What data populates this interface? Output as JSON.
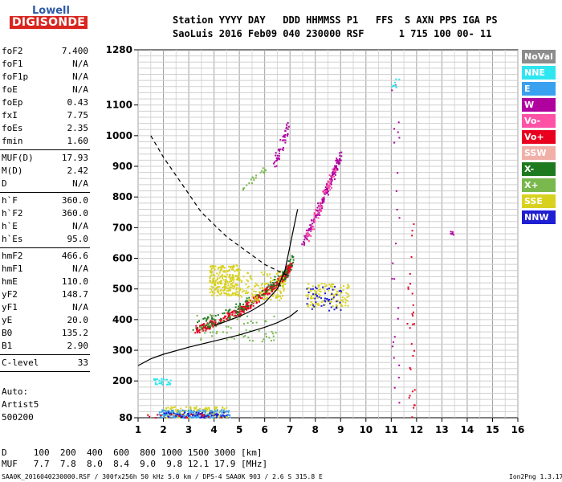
{
  "logo": {
    "top": "Lowell",
    "bottom": "DIGISONDE"
  },
  "header": {
    "line1": "Station YYYY DAY   DDD HHMMSS P1   FFS  S AXN PPS IGA PS",
    "line2": "SaoLuis 2016 Feb09 040 230000 RSF      1 715 100 00- 11"
  },
  "params": [
    {
      "k": "foF2",
      "v": "7.400"
    },
    {
      "k": "foF1",
      "v": "N/A"
    },
    {
      "k": "foF1p",
      "v": "N/A"
    },
    {
      "k": "foE",
      "v": "N/A"
    },
    {
      "k": "foEp",
      "v": "0.43"
    },
    {
      "k": "fxI",
      "v": "7.75"
    },
    {
      "k": "foEs",
      "v": "2.35"
    },
    {
      "k": "fmin",
      "v": "1.60"
    },
    {
      "k": "MUF(D)",
      "v": "17.93"
    },
    {
      "k": "M(D)",
      "v": "2.42"
    },
    {
      "k": "D",
      "v": "N/A"
    },
    {
      "k": "h`F",
      "v": "360.0"
    },
    {
      "k": "h`F2",
      "v": "360.0"
    },
    {
      "k": "h`E",
      "v": "N/A"
    },
    {
      "k": "h`Es",
      "v": "95.0"
    },
    {
      "k": "hmF2",
      "v": "466.6"
    },
    {
      "k": "hmF1",
      "v": "N/A"
    },
    {
      "k": "hmE",
      "v": "110.0"
    },
    {
      "k": "yF2",
      "v": "148.7"
    },
    {
      "k": "yF1",
      "v": "N/A"
    },
    {
      "k": "yE",
      "v": "20.0"
    },
    {
      "k": "B0",
      "v": "135.2"
    },
    {
      "k": "B1",
      "v": "2.90"
    },
    {
      "k": "C-level",
      "v": "33"
    }
  ],
  "auto": {
    "line1": "Auto:",
    "line2": "Artist5",
    "line3": "500200"
  },
  "legend": [
    {
      "label": "NoVal",
      "color": "#8c8c8c"
    },
    {
      "label": "NNE",
      "color": "#2ee6f0"
    },
    {
      "label": "E",
      "color": "#3aa0f0"
    },
    {
      "label": "W",
      "color": "#b0009e"
    },
    {
      "label": "Vo-",
      "color": "#ff52a6"
    },
    {
      "label": "Vo+",
      "color": "#e8001e"
    },
    {
      "label": "SSW",
      "color": "#f0b0a8"
    },
    {
      "label": "X-",
      "color": "#1e7a1e"
    },
    {
      "label": "X+",
      "color": "#78b84c"
    },
    {
      "label": "SSE",
      "color": "#d8d21e"
    },
    {
      "label": "NNW",
      "color": "#1e1ed2"
    }
  ],
  "footer": {
    "d_line": "D     100  200  400  600  800 1000 1500 3000 [km]",
    "muf_line": "MUF   7.7  7.8  8.0  8.4  9.0  9.8 12.1 17.9 [MHz]",
    "source": "SAA0K_2016040230000.RSF / 300fx256h 50 kHz 5.0 km / DPS-4 SAA0K 903 / 2.6 S 315.8 E",
    "version": "Ion2Png 1.3.17"
  },
  "chart_data": {
    "type": "scatter",
    "title": "",
    "xlabel": "",
    "ylabel": "",
    "xlim": [
      1,
      16
    ],
    "ylim": [
      80,
      1280
    ],
    "x_ticks": [
      "1",
      "2",
      "3",
      "4",
      "5",
      "6",
      "7",
      "8",
      "9",
      "10",
      "11",
      "12",
      "13",
      "14",
      "15",
      "16"
    ],
    "y_ticks": [
      {
        "value": 80,
        "label": "80"
      },
      {
        "value": 200,
        "label": "200"
      },
      {
        "value": 300,
        "label": "300"
      },
      {
        "value": 400,
        "label": "400"
      },
      {
        "value": 500,
        "label": "500"
      },
      {
        "value": 600,
        "label": "600"
      },
      {
        "value": 700,
        "label": "700"
      },
      {
        "value": 800,
        "label": "800"
      },
      {
        "value": 900,
        "label": "900"
      },
      {
        "value": 1000,
        "label": "1000"
      },
      {
        "value": 1100,
        "label": "1100"
      },
      {
        "value": 1280,
        "label": "1280"
      }
    ],
    "grid": true,
    "legend_position": "right",
    "curves": [
      {
        "style": "solid",
        "color": "#000000",
        "points": [
          [
            1,
            250
          ],
          [
            1.5,
            272
          ],
          [
            2,
            287
          ],
          [
            3,
            310
          ],
          [
            4,
            330
          ],
          [
            5,
            350
          ],
          [
            6,
            375
          ],
          [
            6.5,
            390
          ],
          [
            7,
            410
          ],
          [
            7.3,
            430
          ]
        ]
      },
      {
        "style": "solid",
        "color": "#000000",
        "points": [
          [
            4,
            380
          ],
          [
            5,
            410
          ],
          [
            5.5,
            430
          ],
          [
            6,
            455
          ],
          [
            6.5,
            500
          ],
          [
            6.8,
            560
          ],
          [
            7.0,
            640
          ],
          [
            7.2,
            720
          ],
          [
            7.3,
            760
          ]
        ]
      },
      {
        "style": "dashed",
        "color": "#000000",
        "points": [
          [
            1.5,
            1000
          ],
          [
            2,
            930
          ],
          [
            2.5,
            870
          ],
          [
            3,
            810
          ],
          [
            3.5,
            750
          ],
          [
            4,
            710
          ],
          [
            4.5,
            670
          ],
          [
            5,
            640
          ],
          [
            5.5,
            610
          ],
          [
            6,
            580
          ],
          [
            6.5,
            560
          ],
          [
            7,
            540
          ]
        ]
      }
    ],
    "clusters": [
      {
        "color": "#e8001e",
        "n": 420,
        "shape": "curve",
        "pts": [
          [
            3.3,
            370
          ],
          [
            4,
            390
          ],
          [
            5,
            430
          ],
          [
            5.5,
            460
          ],
          [
            6,
            490
          ],
          [
            6.5,
            520
          ],
          [
            6.8,
            550
          ],
          [
            7,
            580
          ]
        ],
        "spread": 12
      },
      {
        "color": "#1e7a1e",
        "n": 150,
        "shape": "curve",
        "pts": [
          [
            3.2,
            380
          ],
          [
            4,
            400
          ],
          [
            5,
            440
          ],
          [
            6,
            500
          ],
          [
            6.7,
            540
          ],
          [
            7.1,
            600
          ]
        ],
        "spread": 18
      },
      {
        "color": "#b0009e",
        "n": 160,
        "shape": "curve",
        "pts": [
          [
            7.5,
            650
          ],
          [
            8,
            740
          ],
          [
            8.3,
            800
          ],
          [
            8.7,
            880
          ],
          [
            9,
            950
          ]
        ],
        "spread": 14
      },
      {
        "color": "#ff52a6",
        "n": 60,
        "shape": "curve",
        "pts": [
          [
            7.6,
            660
          ],
          [
            8.2,
            780
          ],
          [
            8.8,
            900
          ]
        ],
        "spread": 16
      },
      {
        "color": "#b0009e",
        "n": 45,
        "shape": "curve",
        "pts": [
          [
            6.3,
            900
          ],
          [
            6.6,
            960
          ],
          [
            6.9,
            1030
          ]
        ],
        "spread": 18
      },
      {
        "color": "#78b84c",
        "n": 20,
        "shape": "curve",
        "pts": [
          [
            5,
            820
          ],
          [
            5.5,
            860
          ],
          [
            6,
            900
          ]
        ],
        "spread": 10
      },
      {
        "color": "#d8d21e",
        "n": 260,
        "shape": "box",
        "box": [
          3.8,
          5.0,
          480,
          580
        ]
      },
      {
        "color": "#d8d21e",
        "n": 120,
        "shape": "box",
        "box": [
          5.0,
          6.8,
          460,
          560
        ]
      },
      {
        "color": "#d8d21e",
        "n": 120,
        "shape": "box",
        "box": [
          7.6,
          9.3,
          440,
          520
        ]
      },
      {
        "color": "#1e1ed2",
        "n": 50,
        "shape": "box",
        "box": [
          7.6,
          9.0,
          430,
          510
        ]
      },
      {
        "color": "#78b84c",
        "n": 60,
        "shape": "box",
        "box": [
          3.3,
          6.5,
          330,
          420
        ]
      },
      {
        "color": "#d8d21e",
        "n": 160,
        "shape": "box",
        "box": [
          2.0,
          4.5,
          82,
          118
        ]
      },
      {
        "color": "#3aa0f0",
        "n": 180,
        "shape": "box",
        "box": [
          1.8,
          4.6,
          82,
          108
        ]
      },
      {
        "color": "#1e1ed2",
        "n": 60,
        "shape": "box",
        "box": [
          2.0,
          4.5,
          82,
          100
        ]
      },
      {
        "color": "#e8001e",
        "n": 20,
        "shape": "box",
        "box": [
          1.2,
          4.5,
          82,
          95
        ]
      },
      {
        "color": "#2ee6f0",
        "n": 30,
        "shape": "box",
        "box": [
          1.6,
          2.3,
          190,
          210
        ]
      },
      {
        "color": "#e8001e",
        "n": 30,
        "shape": "box",
        "box": [
          11.6,
          11.9,
          80,
          760
        ]
      },
      {
        "color": "#b0009e",
        "n": 25,
        "shape": "box",
        "box": [
          11.0,
          11.3,
          100,
          1180
        ]
      },
      {
        "color": "#2ee6f0",
        "n": 8,
        "shape": "box",
        "box": [
          11.0,
          11.3,
          1150,
          1200
        ]
      },
      {
        "color": "#b0009e",
        "n": 6,
        "shape": "box",
        "box": [
          13.3,
          13.5,
          675,
          690
        ]
      }
    ]
  }
}
